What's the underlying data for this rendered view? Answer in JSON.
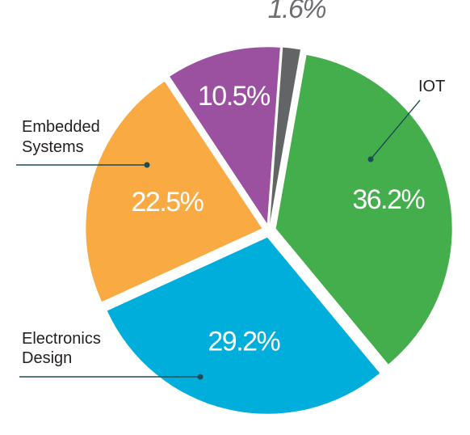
{
  "chart_data": {
    "type": "pie",
    "slices": [
      {
        "label": "IOT",
        "value": 36.2,
        "display": "36.2%",
        "color": "#44ae4c"
      },
      {
        "label": "Electronics Design",
        "value": 29.2,
        "display": "29.2%",
        "color": "#00aedc"
      },
      {
        "label": "Embedded Systems",
        "value": 22.5,
        "display": "22.5%",
        "color": "#f9aa43"
      },
      {
        "label": "",
        "value": 10.5,
        "display": "10.5%",
        "color": "#9b51a0"
      },
      {
        "label": "",
        "value": 1.6,
        "display": "1.6%",
        "color": "#636466"
      }
    ],
    "category_labels": [
      {
        "lines": [
          "IOT"
        ]
      },
      {
        "lines": [
          "Electronics",
          "Design"
        ]
      },
      {
        "lines": [
          "Embedded",
          "Systems"
        ]
      }
    ],
    "legend": "none",
    "grid": false
  }
}
